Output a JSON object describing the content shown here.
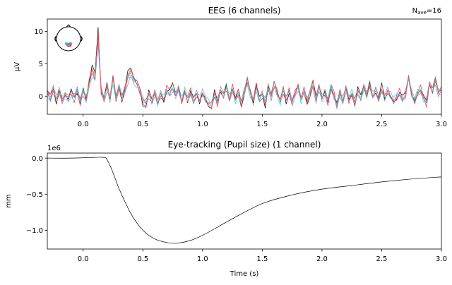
{
  "chart_data": [
    {
      "type": "line",
      "title": "EEG (6 channels)",
      "annotation": {
        "prefix": "N",
        "sub": "ave",
        "suffix": "=16"
      },
      "ylabel": "µV",
      "xlabel": "",
      "xlim": [
        -0.3,
        3.0
      ],
      "ylim": [
        -2.8,
        11.9
      ],
      "xticks": [
        0.0,
        0.5,
        1.0,
        1.5,
        2.0,
        2.5,
        3.0
      ],
      "xtick_labels": [
        "0.0",
        "0.5",
        "1.0",
        "1.5",
        "2.0",
        "2.5",
        "3.0"
      ],
      "yticks": [
        0,
        5,
        10
      ],
      "ytick_labels": [
        "0",
        "5",
        "10"
      ],
      "grid": false,
      "legend": "sensor-topomap-inset top-left",
      "x_start": -0.3,
      "x_step": 0.025,
      "mean_trace": [
        0.5,
        -0.3,
        1.2,
        -0.5,
        0.8,
        -0.6,
        0.2,
        -0.4,
        0.5,
        -0.3,
        1.0,
        -0.8,
        0.8,
        -0.5,
        2.0,
        4.0,
        3.0,
        9.5,
        1.0,
        -0.5,
        1.5,
        -0.3,
        2.8,
        -0.3,
        1.5,
        -0.2,
        1.0,
        3.0,
        3.8,
        2.5,
        2.0,
        1.0,
        -0.8,
        -1.2,
        0.3,
        -0.8,
        0.5,
        -1.0,
        0.3,
        -0.5,
        1.0,
        0.5,
        1.3,
        0.2,
        1.2,
        -0.8,
        0.8,
        -0.5,
        0.6,
        -0.8,
        0.3,
        -0.6,
        0.5,
        -0.5,
        -1.2,
        -1.6,
        0.3,
        -1.0,
        1.0,
        0.2,
        1.5,
        -0.5,
        1.2,
        -0.6,
        0.5,
        -1.2,
        0.8,
        2.5,
        0.5,
        -0.8,
        1.5,
        -0.5,
        0.3,
        -1.0,
        1.5,
        0.0,
        2.0,
        0.5,
        -0.8,
        1.0,
        -0.5,
        0.8,
        -1.0,
        0.5,
        1.5,
        -0.5,
        1.0,
        -0.8,
        0.5,
        2.0,
        -0.5,
        1.5,
        -0.3,
        0.5,
        -0.8,
        1.5,
        0.2,
        -1.5,
        0.5,
        -0.8,
        1.2,
        -0.5,
        0.5,
        -1.0,
        0.8,
        -0.3,
        1.5,
        0.2,
        1.8,
        0.0,
        0.8,
        -0.5,
        1.2,
        -0.3,
        0.8,
        0.0,
        -0.8,
        -0.2,
        0.5,
        -0.5,
        0.3,
        3.0,
        0.5,
        -0.8,
        0.5,
        1.0,
        -0.3,
        -1.0,
        2.0,
        1.0,
        2.5,
        0.5,
        1.0
      ],
      "series": [
        {
          "color": "#000000",
          "scale": 1.12
        },
        {
          "color": "#e8302a",
          "scale": 1.05
        },
        {
          "color": "#00e5f0",
          "scale": 0.9
        },
        {
          "color": "#9a9a9a",
          "scale": 0.95
        },
        {
          "color": "#8080c8",
          "scale": 0.85
        },
        {
          "color": "#f06060",
          "scale": 1.0
        }
      ]
    },
    {
      "type": "line",
      "title": "Eye-tracking (Pupil size) (1 channel)",
      "ylabel": "mm",
      "xlabel": "Time (s)",
      "offset_text": "1e6",
      "xlim": [
        -0.3,
        3.0
      ],
      "ylim": [
        -1.26,
        0.07
      ],
      "xticks": [
        0.0,
        0.5,
        1.0,
        1.5,
        2.0,
        2.5,
        3.0
      ],
      "xtick_labels": [
        "0.0",
        "0.5",
        "1.0",
        "1.5",
        "2.0",
        "2.5",
        "3.0"
      ],
      "yticks": [
        0.0,
        -0.5,
        -1.0
      ],
      "ytick_labels": [
        "0.0",
        "−0.5",
        "−1.0"
      ],
      "grid": false,
      "series": [
        {
          "color": "#000000",
          "x": [
            -0.3,
            -0.1,
            0.1,
            0.17,
            0.2,
            0.25,
            0.3,
            0.4,
            0.5,
            0.6,
            0.7,
            0.78,
            0.9,
            1.0,
            1.1,
            1.25,
            1.5,
            1.75,
            2.0,
            2.25,
            2.5,
            2.75,
            3.0
          ],
          "y": [
            0.0,
            0.0,
            0.01,
            0.01,
            -0.02,
            -0.2,
            -0.42,
            -0.77,
            -1.0,
            -1.12,
            -1.17,
            -1.18,
            -1.14,
            -1.07,
            -0.98,
            -0.84,
            -0.63,
            -0.51,
            -0.43,
            -0.38,
            -0.33,
            -0.29,
            -0.26
          ]
        }
      ]
    }
  ]
}
